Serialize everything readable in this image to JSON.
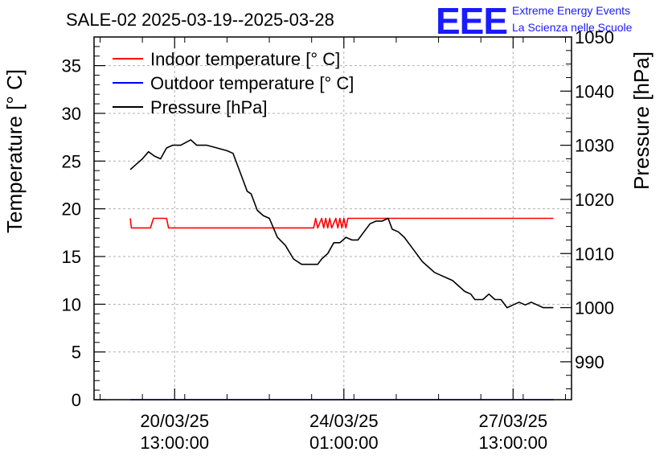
{
  "chart_data": {
    "type": "line",
    "title": "SALE-02 2025-03-19--2025-03-28",
    "logo": {
      "mark": "EEE",
      "line1": "Extreme Energy Events",
      "line2": "La Scienza nelle Scuole"
    },
    "y_left": {
      "label": "Temperature [° C]",
      "range": [
        0,
        38
      ],
      "ticks": [
        0,
        5,
        10,
        15,
        20,
        25,
        30,
        35
      ]
    },
    "y_right": {
      "label": "Pressure [hPa]",
      "range": [
        983,
        1050
      ],
      "ticks": [
        990,
        1000,
        1010,
        1020,
        1030,
        1040,
        1050
      ]
    },
    "x_axis": {
      "unit": "hours since 2025-03-19 00:00",
      "range": [
        -3,
        234
      ],
      "ticks": [
        {
          "t": 37,
          "line1": "20/03/25",
          "line2": "13:00:00"
        },
        {
          "t": 121,
          "line1": "24/03/25",
          "line2": "01:00:00"
        },
        {
          "t": 205,
          "line1": "27/03/25",
          "line2": "13:00:00"
        }
      ]
    },
    "legend": {
      "position": "top-left",
      "entries": [
        {
          "label": "Indoor temperature [° C]",
          "color": "#ff0000"
        },
        {
          "label": "Outdoor temperature [° C]",
          "color": "#0000ff"
        },
        {
          "label": "Pressure [hPa]",
          "color": "#000000"
        }
      ]
    },
    "grid": true,
    "series": [
      {
        "name": "Indoor temperature [° C]",
        "axis": "left",
        "color": "#ff0000",
        "points": [
          [
            15,
            19
          ],
          [
            15.5,
            18
          ],
          [
            25,
            18
          ],
          [
            26.5,
            19
          ],
          [
            33,
            19
          ],
          [
            34,
            18
          ],
          [
            106,
            18
          ],
          [
            107,
            19
          ],
          [
            108,
            18
          ],
          [
            110,
            19
          ],
          [
            111,
            18
          ],
          [
            112,
            19
          ],
          [
            113,
            18
          ],
          [
            114,
            19
          ],
          [
            115,
            18
          ],
          [
            117,
            19
          ],
          [
            118,
            18
          ],
          [
            119,
            19
          ],
          [
            120,
            18
          ],
          [
            121,
            19
          ],
          [
            122,
            18
          ],
          [
            123,
            19
          ],
          [
            124,
            19
          ],
          [
            225,
            19
          ]
        ]
      },
      {
        "name": "Outdoor temperature [° C]",
        "axis": "left",
        "color": "#0000ff",
        "points": [
          [
            15,
            0
          ],
          [
            225,
            0
          ]
        ]
      },
      {
        "name": "Pressure [hPa]",
        "axis": "right",
        "color": "#000000",
        "points": [
          [
            15,
            1025.5
          ],
          [
            18,
            1026.5
          ],
          [
            21,
            1027.5
          ],
          [
            24,
            1028.8
          ],
          [
            27,
            1028.0
          ],
          [
            30,
            1027.5
          ],
          [
            33,
            1029.5
          ],
          [
            36,
            1030.0
          ],
          [
            40,
            1030.0
          ],
          [
            45,
            1031.0
          ],
          [
            48,
            1030.0
          ],
          [
            53,
            1030.0
          ],
          [
            58,
            1029.5
          ],
          [
            63,
            1029.0
          ],
          [
            66,
            1028.5
          ],
          [
            70,
            1024.5
          ],
          [
            73,
            1021.5
          ],
          [
            75,
            1021.0
          ],
          [
            78,
            1018.0
          ],
          [
            81,
            1017.0
          ],
          [
            84,
            1016.5
          ],
          [
            88,
            1013.0
          ],
          [
            92,
            1011.5
          ],
          [
            96,
            1009.0
          ],
          [
            100,
            1008.0
          ],
          [
            104,
            1008.0
          ],
          [
            108,
            1008.0
          ],
          [
            110,
            1009.0
          ],
          [
            113,
            1010.0
          ],
          [
            116,
            1012.0
          ],
          [
            119,
            1012.0
          ],
          [
            122,
            1013.0
          ],
          [
            125,
            1012.5
          ],
          [
            128,
            1012.5
          ],
          [
            131,
            1014.0
          ],
          [
            134,
            1015.5
          ],
          [
            137,
            1016.0
          ],
          [
            140,
            1016.0
          ],
          [
            143,
            1016.5
          ],
          [
            145,
            1014.5
          ],
          [
            148,
            1014.0
          ],
          [
            151,
            1013.0
          ],
          [
            154,
            1011.5
          ],
          [
            157,
            1010.0
          ],
          [
            160,
            1008.5
          ],
          [
            163,
            1007.5
          ],
          [
            166,
            1006.5
          ],
          [
            169,
            1006.0
          ],
          [
            172,
            1005.5
          ],
          [
            175,
            1005.0
          ],
          [
            178,
            1004.0
          ],
          [
            181,
            1003.0
          ],
          [
            184,
            1002.5
          ],
          [
            186,
            1001.5
          ],
          [
            190,
            1001.5
          ],
          [
            193,
            1002.5
          ],
          [
            196,
            1001.5
          ],
          [
            199,
            1001.5
          ],
          [
            202,
            1000.0
          ],
          [
            205,
            1000.5
          ],
          [
            208,
            1001.0
          ],
          [
            211,
            1000.5
          ],
          [
            214,
            1001.0
          ],
          [
            217,
            1000.5
          ],
          [
            220,
            1000.0
          ],
          [
            225,
            1000.0
          ]
        ]
      }
    ]
  }
}
